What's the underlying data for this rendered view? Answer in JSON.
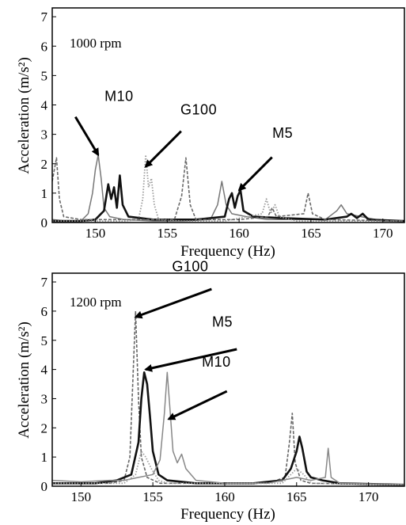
{
  "chart_data": [
    {
      "type": "line",
      "panel_label": "1000 rpm",
      "xlabel": "Frequency (Hz)",
      "ylabel": "Acceleration (m/s²)",
      "xlim": [
        147,
        171.5
      ],
      "ylim": [
        0,
        7.3
      ],
      "xticks": [
        150,
        155,
        160,
        165,
        170
      ],
      "yticks": [
        0,
        1,
        2,
        3,
        4,
        5,
        6,
        7
      ],
      "grid": false,
      "annotations": [
        {
          "text": "M10",
          "x": 150.2,
          "y": 2.3
        },
        {
          "text": "G100",
          "x": 153.5,
          "y": 1.9
        },
        {
          "text": "M5",
          "x": 160.0,
          "y": 1.1
        }
      ],
      "series": [
        {
          "style": "thin-solid-gray",
          "color": "#777777",
          "points": [
            [
              147,
              0.1
            ],
            [
              148,
              0.05
            ],
            [
              149,
              0.05
            ],
            [
              149.5,
              0.3
            ],
            [
              149.8,
              1.0
            ],
            [
              150,
              1.8
            ],
            [
              150.2,
              2.3
            ],
            [
              150.4,
              1.5
            ],
            [
              150.6,
              0.5
            ],
            [
              151,
              0.2
            ],
            [
              152,
              0.1
            ],
            [
              154,
              0.05
            ],
            [
              156,
              0.05
            ],
            [
              158,
              0.1
            ],
            [
              158.5,
              0.6
            ],
            [
              158.8,
              1.4
            ],
            [
              159.1,
              0.6
            ],
            [
              159.5,
              0.3
            ],
            [
              160.5,
              0.2
            ],
            [
              162,
              0.1
            ],
            [
              164,
              0.1
            ],
            [
              166,
              0.1
            ],
            [
              166.8,
              0.4
            ],
            [
              167.1,
              0.6
            ],
            [
              167.5,
              0.3
            ],
            [
              168.5,
              0.2
            ],
            [
              170,
              0.05
            ],
            [
              171.5,
              0.05
            ]
          ]
        },
        {
          "style": "thick-solid-black",
          "color": "#111111",
          "points": [
            [
              147,
              0.05
            ],
            [
              149,
              0.05
            ],
            [
              150,
              0.1
            ],
            [
              150.6,
              0.4
            ],
            [
              150.9,
              1.3
            ],
            [
              151.1,
              0.8
            ],
            [
              151.3,
              1.2
            ],
            [
              151.5,
              0.5
            ],
            [
              151.7,
              1.6
            ],
            [
              151.9,
              0.6
            ],
            [
              152.3,
              0.2
            ],
            [
              154,
              0.1
            ],
            [
              157,
              0.1
            ],
            [
              159,
              0.2
            ],
            [
              159.3,
              0.8
            ],
            [
              159.5,
              1.0
            ],
            [
              159.7,
              0.5
            ],
            [
              159.9,
              0.9
            ],
            [
              160.1,
              1.1
            ],
            [
              160.3,
              0.4
            ],
            [
              161,
              0.2
            ],
            [
              163,
              0.15
            ],
            [
              166,
              0.1
            ],
            [
              167.5,
              0.2
            ],
            [
              167.8,
              0.3
            ],
            [
              168.2,
              0.15
            ],
            [
              168.6,
              0.3
            ],
            [
              169,
              0.1
            ],
            [
              171.5,
              0.05
            ]
          ]
        },
        {
          "style": "dotted-gray",
          "color": "#9a9a9a",
          "points": [
            [
              147,
              0.05
            ],
            [
              152,
              0.05
            ],
            [
              153,
              0.1
            ],
            [
              153.3,
              0.8
            ],
            [
              153.5,
              2.3
            ],
            [
              153.7,
              1.2
            ],
            [
              153.9,
              1.5
            ],
            [
              154.1,
              0.6
            ],
            [
              154.4,
              0.1
            ],
            [
              156,
              0.05
            ],
            [
              159,
              0.05
            ],
            [
              161.6,
              0.3
            ],
            [
              161.9,
              0.8
            ],
            [
              162.2,
              0.3
            ],
            [
              162.5,
              0.6
            ],
            [
              162.8,
              0.2
            ],
            [
              164,
              0.05
            ],
            [
              171.5,
              0.05
            ]
          ]
        },
        {
          "style": "dashed-gray",
          "color": "#6a6a6a",
          "points": [
            [
              147,
              1.4
            ],
            [
              147.3,
              2.2
            ],
            [
              147.5,
              0.8
            ],
            [
              147.8,
              0.2
            ],
            [
              149,
              0.1
            ],
            [
              153,
              0.1
            ],
            [
              155.5,
              0.1
            ],
            [
              156,
              0.9
            ],
            [
              156.3,
              2.2
            ],
            [
              156.6,
              0.6
            ],
            [
              157,
              0.1
            ],
            [
              160,
              0.1
            ],
            [
              162,
              0.2
            ],
            [
              162.3,
              0.5
            ],
            [
              162.6,
              0.2
            ],
            [
              164.5,
              0.3
            ],
            [
              164.8,
              1.0
            ],
            [
              165.1,
              0.3
            ],
            [
              166,
              0.1
            ],
            [
              171.5,
              0.05
            ]
          ]
        }
      ]
    },
    {
      "type": "line",
      "panel_label": "1200 rpm",
      "xlabel": "Frequency (Hz)",
      "ylabel": "Acceleration (m/s²)",
      "xlim": [
        148,
        172.5
      ],
      "ylim": [
        0,
        7.3
      ],
      "xticks": [
        150,
        155,
        160,
        165,
        170
      ],
      "yticks": [
        0,
        1,
        2,
        3,
        4,
        5,
        6,
        7
      ],
      "grid": false,
      "annotations": [
        {
          "text": "G100",
          "x": 153.8,
          "y": 5.8
        },
        {
          "text": "M5",
          "x": 154.5,
          "y": 4.0
        },
        {
          "text": "M10",
          "x": 156.1,
          "y": 2.3
        }
      ],
      "series": [
        {
          "style": "dashed-gray",
          "color": "#666666",
          "points": [
            [
              148,
              0.1
            ],
            [
              152,
              0.1
            ],
            [
              153,
              0.2
            ],
            [
              153.4,
              1.0
            ],
            [
              153.6,
              3.5
            ],
            [
              153.8,
              6.0
            ],
            [
              154,
              3.0
            ],
            [
              154.2,
              1.0
            ],
            [
              154.6,
              0.3
            ],
            [
              155.5,
              0.1
            ],
            [
              158,
              0.1
            ],
            [
              163,
              0.1
            ],
            [
              164.2,
              0.3
            ],
            [
              164.5,
              1.5
            ],
            [
              164.7,
              2.5
            ],
            [
              164.9,
              0.8
            ],
            [
              165.3,
              0.2
            ],
            [
              166,
              0.1
            ],
            [
              172.5,
              0.05
            ]
          ]
        },
        {
          "style": "thick-solid-black",
          "color": "#111111",
          "points": [
            [
              148,
              0.1
            ],
            [
              151,
              0.1
            ],
            [
              152.5,
              0.2
            ],
            [
              153.5,
              0.4
            ],
            [
              154,
              1.5
            ],
            [
              154.2,
              3.0
            ],
            [
              154.4,
              3.9
            ],
            [
              154.6,
              3.5
            ],
            [
              154.8,
              2.4
            ],
            [
              155,
              1.2
            ],
            [
              155.4,
              0.4
            ],
            [
              156,
              0.2
            ],
            [
              158,
              0.1
            ],
            [
              162,
              0.1
            ],
            [
              164,
              0.2
            ],
            [
              164.6,
              0.6
            ],
            [
              165,
              1.2
            ],
            [
              165.2,
              1.7
            ],
            [
              165.4,
              1.3
            ],
            [
              165.7,
              0.5
            ],
            [
              166,
              0.3
            ],
            [
              166.8,
              0.2
            ],
            [
              168,
              0.1
            ],
            [
              172.5,
              0.05
            ]
          ]
        },
        {
          "style": "thin-solid-gray",
          "color": "#888888",
          "points": [
            [
              148,
              0.2
            ],
            [
              150,
              0.15
            ],
            [
              152,
              0.2
            ],
            [
              153,
              0.2
            ],
            [
              154,
              0.3
            ],
            [
              155,
              0.4
            ],
            [
              155.5,
              0.9
            ],
            [
              155.8,
              2.5
            ],
            [
              156,
              3.9
            ],
            [
              156.2,
              2.6
            ],
            [
              156.4,
              1.2
            ],
            [
              156.7,
              0.8
            ],
            [
              157,
              1.1
            ],
            [
              157.3,
              0.6
            ],
            [
              158,
              0.2
            ],
            [
              160,
              0.1
            ],
            [
              163,
              0.1
            ],
            [
              165,
              0.3
            ],
            [
              166,
              0.2
            ],
            [
              167,
              0.3
            ],
            [
              167.2,
              1.3
            ],
            [
              167.4,
              0.3
            ],
            [
              168,
              0.1
            ],
            [
              172.5,
              0.05
            ]
          ]
        },
        {
          "style": "dotted-gray",
          "color": "#a0a0a0",
          "points": [
            [
              148,
              0.1
            ],
            [
              153,
              0.1
            ],
            [
              153.8,
              0.4
            ],
            [
              154.2,
              1.2
            ],
            [
              154.5,
              1.0
            ],
            [
              154.9,
              0.6
            ],
            [
              155.4,
              0.2
            ],
            [
              156,
              0.1
            ],
            [
              164,
              0.1
            ],
            [
              165,
              0.6
            ],
            [
              165.5,
              0.4
            ],
            [
              166,
              0.1
            ],
            [
              172.5,
              0.05
            ]
          ]
        }
      ]
    }
  ]
}
